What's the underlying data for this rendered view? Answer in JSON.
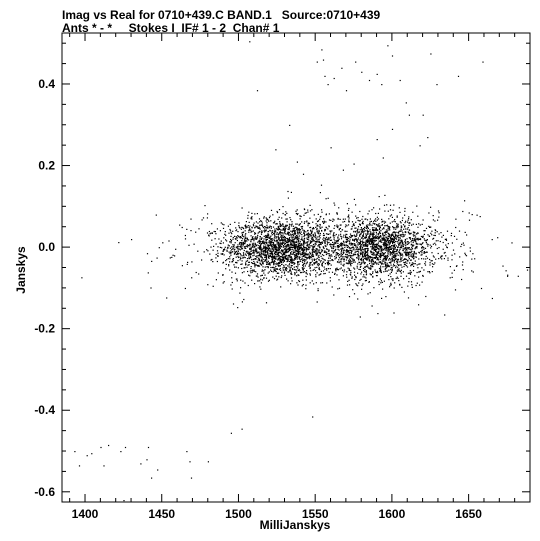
{
  "header": {
    "line1": "Imag vs Real for 0710+439.C BAND.1   Source:0710+439",
    "line2": "Ants * - *     Stokes I  IF# 1 - 2  Chan# 1"
  },
  "chart_data": {
    "type": "scatter",
    "title": "Imag vs Real for 0710+439.C BAND.1   Source:0710+439",
    "subtitle": "Ants * - *     Stokes I  IF# 1 - 2  Chan# 1",
    "xlabel": "MilliJanskys",
    "ylabel": "Janskys",
    "xlim": [
      1385,
      1690
    ],
    "ylim": [
      -0.625,
      0.525
    ],
    "xticks": [
      1400,
      1450,
      1500,
      1550,
      1600,
      1650
    ],
    "xtick_labels": [
      "1400",
      "1450",
      "1500",
      "1550",
      "1600",
      "1650"
    ],
    "yticks": [
      -0.6,
      -0.4,
      -0.2,
      0.0,
      0.2,
      0.4
    ],
    "ytick_labels": [
      "-0.6",
      "-0.4",
      "-0.2",
      "0.0",
      "0.2",
      "0.4"
    ],
    "grid": false,
    "marker_color": "#000000",
    "clusters": [
      {
        "name": "core-left",
        "x_center": 1527,
        "x_spread": 18,
        "y_center": 0.0,
        "y_spread": 0.035,
        "count": 1800
      },
      {
        "name": "core-right",
        "x_center": 1592,
        "x_spread": 18,
        "y_center": 0.0,
        "y_spread": 0.035,
        "count": 1600
      },
      {
        "name": "halo",
        "x_center": 1560,
        "x_spread": 45,
        "y_center": 0.0,
        "y_spread": 0.05,
        "count": 900
      }
    ],
    "outliers": [
      {
        "x": 1393,
        "y": -0.5
      },
      {
        "x": 1396,
        "y": -0.535
      },
      {
        "x": 1401,
        "y": -0.51
      },
      {
        "x": 1404,
        "y": -0.505
      },
      {
        "x": 1410,
        "y": -0.49
      },
      {
        "x": 1412,
        "y": -0.535
      },
      {
        "x": 1415,
        "y": -0.485
      },
      {
        "x": 1423,
        "y": -0.5
      },
      {
        "x": 1426,
        "y": -0.49
      },
      {
        "x": 1436,
        "y": -0.53
      },
      {
        "x": 1440,
        "y": -0.52
      },
      {
        "x": 1441,
        "y": -0.49
      },
      {
        "x": 1443,
        "y": -0.565
      },
      {
        "x": 1447,
        "y": -0.545
      },
      {
        "x": 1466,
        "y": -0.5
      },
      {
        "x": 1468,
        "y": -0.525
      },
      {
        "x": 1469,
        "y": -0.565
      },
      {
        "x": 1480,
        "y": -0.525
      },
      {
        "x": 1495,
        "y": -0.455
      },
      {
        "x": 1502,
        "y": -0.445
      },
      {
        "x": 1425,
        "y": -0.62
      },
      {
        "x": 1548,
        "y": -0.415
      },
      {
        "x": 1430,
        "y": 0.02
      },
      {
        "x": 1448,
        "y": 0.0
      },
      {
        "x": 1458,
        "y": -0.02
      },
      {
        "x": 1465,
        "y": 0.03
      },
      {
        "x": 1465,
        "y": -0.1
      },
      {
        "x": 1507,
        "y": 0.505
      },
      {
        "x": 1512,
        "y": 0.385
      },
      {
        "x": 1524,
        "y": 0.24
      },
      {
        "x": 1533,
        "y": 0.3
      },
      {
        "x": 1538,
        "y": 0.21
      },
      {
        "x": 1542,
        "y": 0.18
      },
      {
        "x": 1554,
        "y": 0.485
      },
      {
        "x": 1555,
        "y": 0.46
      },
      {
        "x": 1556,
        "y": 0.42
      },
      {
        "x": 1558,
        "y": 0.4
      },
      {
        "x": 1551,
        "y": 0.455
      },
      {
        "x": 1562,
        "y": 0.415
      },
      {
        "x": 1567,
        "y": 0.44
      },
      {
        "x": 1570,
        "y": 0.385
      },
      {
        "x": 1576,
        "y": 0.455
      },
      {
        "x": 1580,
        "y": 0.43
      },
      {
        "x": 1585,
        "y": 0.41
      },
      {
        "x": 1590,
        "y": 0.425
      },
      {
        "x": 1593,
        "y": 0.4
      },
      {
        "x": 1597,
        "y": 0.495
      },
      {
        "x": 1600,
        "y": 0.47
      },
      {
        "x": 1605,
        "y": 0.41
      },
      {
        "x": 1609,
        "y": 0.355
      },
      {
        "x": 1611,
        "y": 0.325
      },
      {
        "x": 1620,
        "y": 0.325
      },
      {
        "x": 1625,
        "y": 0.475
      },
      {
        "x": 1629,
        "y": 0.4
      },
      {
        "x": 1618,
        "y": 0.25
      },
      {
        "x": 1623,
        "y": 0.27
      },
      {
        "x": 1590,
        "y": 0.265
      },
      {
        "x": 1594,
        "y": 0.22
      },
      {
        "x": 1600,
        "y": 0.29
      },
      {
        "x": 1575,
        "y": 0.205
      },
      {
        "x": 1568,
        "y": 0.19
      },
      {
        "x": 1560,
        "y": 0.245
      },
      {
        "x": 1643,
        "y": 0.42
      },
      {
        "x": 1659,
        "y": 0.455
      },
      {
        "x": 1630,
        "y": 0.09
      },
      {
        "x": 1647,
        "y": 0.115
      },
      {
        "x": 1572,
        "y": -0.12
      },
      {
        "x": 1579,
        "y": -0.17
      },
      {
        "x": 1601,
        "y": -0.16
      },
      {
        "x": 1617,
        "y": -0.14
      },
      {
        "x": 1634,
        "y": -0.165
      },
      {
        "x": 1658,
        "y": -0.1
      },
      {
        "x": 1675,
        "y": -0.07
      },
      {
        "x": 1682,
        "y": -0.07
      },
      {
        "x": 1688,
        "y": -0.055
      },
      {
        "x": 1672,
        "y": -0.045
      },
      {
        "x": 1665,
        "y": 0.02
      },
      {
        "x": 1650,
        "y": 0.085
      }
    ]
  }
}
